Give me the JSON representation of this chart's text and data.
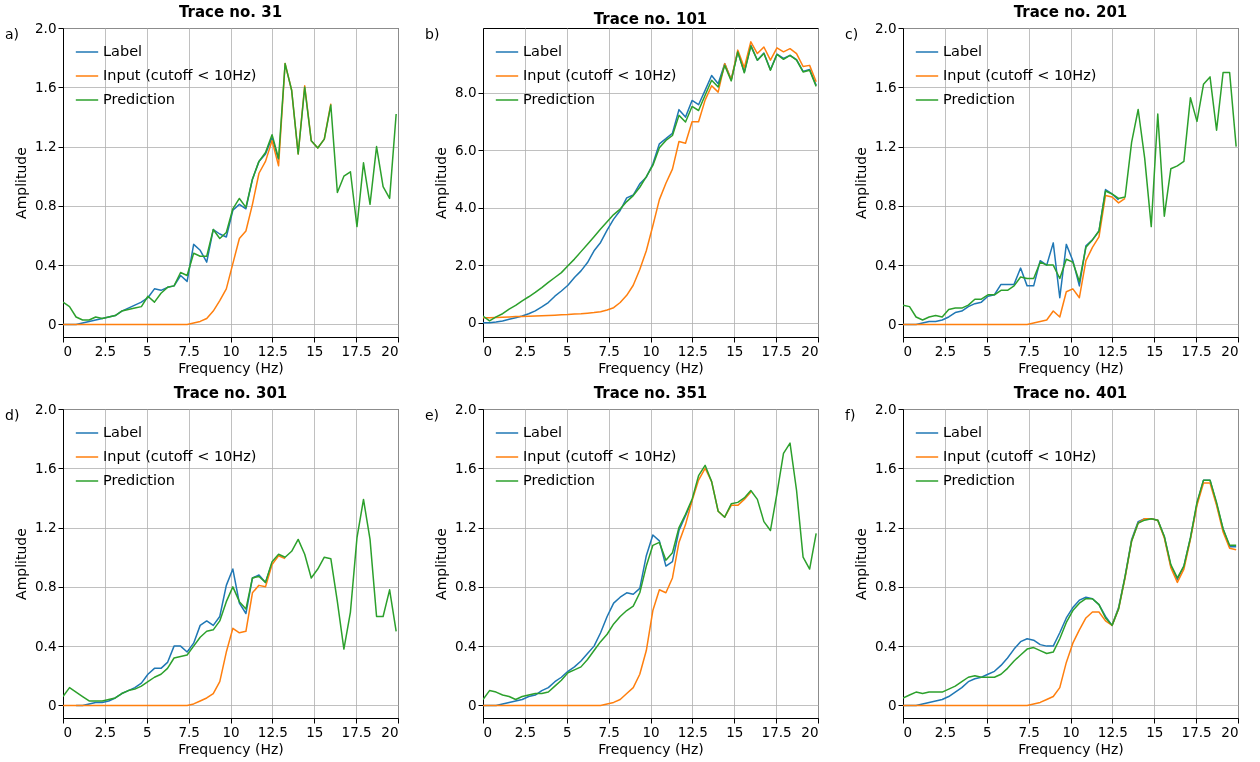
{
  "chart_data": [
    {
      "type": "line",
      "title": "Trace no. 31",
      "xlabel": "Frequency (Hz)",
      "ylabel": "Amplitude",
      "annotations": [
        "a)"
      ],
      "legend": "top left",
      "grid": true,
      "xlim": [
        0,
        20
      ],
      "xticks": [
        0,
        2.5,
        5,
        7.5,
        10,
        12.5,
        15,
        17.5,
        20
      ],
      "ylim": [
        -0.085,
        2.0
      ],
      "yticks": [
        0,
        0.4,
        0.8,
        1.2,
        1.6,
        {
          "value": 2.0,
          "label": "2.0"
        }
      ],
      "x": [
        0,
        0.39,
        0.78,
        1.17,
        1.56,
        1.95,
        2.34,
        2.73,
        3.12,
        3.51,
        3.9,
        4.29,
        4.68,
        5.07,
        5.46,
        5.85,
        6.24,
        6.63,
        7.02,
        7.41,
        7.8,
        8.19,
        8.58,
        8.97,
        9.36,
        9.75,
        10.14,
        10.53,
        10.92,
        11.31,
        11.7,
        12.09,
        12.48,
        12.87,
        13.26,
        13.65,
        14.04,
        14.43,
        14.82,
        15.21,
        15.6,
        15.99,
        16.38,
        16.77,
        17.16,
        17.55,
        17.94,
        18.33,
        18.72,
        19.11,
        19.5,
        19.89
      ],
      "series": [
        {
          "name": "Label",
          "color": "#1f77b4",
          "values": [
            0,
            0,
            0,
            0.01,
            0.02,
            0.03,
            0.04,
            0.05,
            0.06,
            0.09,
            0.11,
            0.13,
            0.15,
            0.18,
            0.24,
            0.23,
            0.25,
            0.26,
            0.33,
            0.29,
            0.54,
            0.5,
            0.42,
            0.64,
            0.61,
            0.59,
            0.77,
            0.81,
            0.78,
            0.98,
            1.1,
            1.15,
            1.26,
            1.11,
            null,
            null,
            null,
            null,
            null,
            null,
            null,
            null,
            null,
            null,
            null,
            null,
            null,
            null,
            null,
            null,
            null,
            null
          ]
        },
        {
          "name": "Input (cutoff < 10Hz)",
          "color": "#ff7f0e",
          "values": [
            0,
            0,
            0,
            0,
            0,
            0,
            0,
            0,
            0,
            0,
            0,
            0,
            0,
            0,
            0,
            0,
            0,
            0,
            0,
            0,
            0.01,
            0.02,
            0.04,
            0.09,
            0.16,
            0.24,
            0.41,
            0.58,
            0.63,
            0.81,
            1.02,
            1.1,
            1.24,
            1.07,
            1.76,
            1.58,
            1.15,
            1.61,
            1.24,
            1.19,
            1.25,
            1.49,
            null,
            null,
            null,
            null,
            null,
            null,
            null,
            null,
            null,
            null
          ]
        },
        {
          "name": "Prediction",
          "color": "#2ca02c",
          "values": [
            0.15,
            0.12,
            0.05,
            0.03,
            0.03,
            0.05,
            0.04,
            0.05,
            0.06,
            0.09,
            0.1,
            0.11,
            0.12,
            0.19,
            0.15,
            0.21,
            0.25,
            0.26,
            0.35,
            0.33,
            0.48,
            0.46,
            0.46,
            0.64,
            0.58,
            0.62,
            0.78,
            0.85,
            0.79,
            0.98,
            1.1,
            1.16,
            1.28,
            1.12,
            1.76,
            1.58,
            1.15,
            1.6,
            1.24,
            1.19,
            1.25,
            1.48,
            0.89,
            1.0,
            1.03,
            0.66,
            1.09,
            0.81,
            1.2,
            0.93,
            0.85,
            1.42
          ]
        }
      ]
    },
    {
      "type": "line",
      "title": "Trace no. 101",
      "xlabel": "Frequency (Hz)",
      "ylabel": "Amplitude",
      "annotations": [
        "b)"
      ],
      "legend": "top left",
      "grid": true,
      "xlim": [
        0,
        20
      ],
      "xticks": [
        0,
        2.5,
        5,
        7.5,
        10,
        12.5,
        15,
        17.5,
        20
      ],
      "ylim": [
        -0.5,
        10.25
      ],
      "yticks": [
        0,
        {
          "value": 2,
          "label": "2.0"
        },
        {
          "value": 4,
          "label": "4.0"
        },
        {
          "value": 6,
          "label": "6.0"
        },
        {
          "value": 8,
          "label": "8.0"
        }
      ],
      "x": [
        0,
        0.39,
        0.78,
        1.17,
        1.56,
        1.95,
        2.34,
        2.73,
        3.12,
        3.51,
        3.9,
        4.29,
        4.68,
        5.07,
        5.46,
        5.85,
        6.24,
        6.63,
        7.02,
        7.41,
        7.8,
        8.19,
        8.58,
        8.97,
        9.36,
        9.75,
        10.14,
        10.53,
        10.92,
        11.31,
        11.7,
        12.09,
        12.48,
        12.87,
        13.26,
        13.65,
        14.04,
        14.43,
        14.82,
        15.21,
        15.6,
        15.99,
        16.38,
        16.77,
        17.16,
        17.55,
        17.94,
        18.33,
        18.72,
        19.11,
        19.5,
        19.89
      ],
      "series": [
        {
          "name": "Label",
          "color": "#1f77b4",
          "values": [
            0,
            0,
            0.02,
            0.06,
            0.12,
            0.17,
            0.23,
            0.31,
            0.41,
            0.55,
            0.7,
            0.92,
            1.1,
            1.3,
            1.57,
            1.8,
            2.09,
            2.5,
            2.79,
            3.22,
            3.6,
            3.9,
            4.34,
            4.44,
            4.83,
            5.06,
            5.52,
            6.22,
            6.4,
            6.59,
            7.41,
            7.15,
            7.73,
            7.58,
            8.08,
            8.6,
            8.31,
            9.01,
            8.45,
            9.42,
            8.72,
            9.65,
            9.13,
            9.38,
            8.8,
            9.34,
            9.19,
            9.3,
            9.15,
            8.74,
            8.81,
            8.26
          ]
        },
        {
          "name": "Input (cutoff < 10Hz)",
          "color": "#ff7f0e",
          "values": [
            0.17,
            0.17,
            0.18,
            0.19,
            0.2,
            0.21,
            0.21,
            0.22,
            0.23,
            0.24,
            0.25,
            0.26,
            0.27,
            0.28,
            0.3,
            0.31,
            0.33,
            0.35,
            0.38,
            0.44,
            0.52,
            0.7,
            0.95,
            1.3,
            1.85,
            2.5,
            3.37,
            4.28,
            4.85,
            5.34,
            6.3,
            6.24,
            6.99,
            6.99,
            7.74,
            8.24,
            8.02,
            9.01,
            8.45,
            9.48,
            8.87,
            9.77,
            9.36,
            9.59,
            9.13,
            9.56,
            9.42,
            9.53,
            9.36,
            8.91,
            8.95,
            8.38
          ]
        },
        {
          "name": "Prediction",
          "color": "#2ca02c",
          "values": [
            0.23,
            0.06,
            0.2,
            0.31,
            0.47,
            0.6,
            0.76,
            0.9,
            1.05,
            1.22,
            1.4,
            1.57,
            1.74,
            1.98,
            2.21,
            2.47,
            2.73,
            2.99,
            3.26,
            3.51,
            3.76,
            3.95,
            4.21,
            4.42,
            4.71,
            5.08,
            5.47,
            6.08,
            6.34,
            6.51,
            7.21,
            6.98,
            7.52,
            7.38,
            7.91,
            8.43,
            8.2,
            8.95,
            8.41,
            9.42,
            8.69,
            9.62,
            9.13,
            9.36,
            8.78,
            9.33,
            9.16,
            9.3,
            9.13,
            8.72,
            8.78,
            8.22
          ]
        }
      ]
    },
    {
      "type": "line",
      "title": "Trace no. 201",
      "xlabel": "Frequency (Hz)",
      "ylabel": "Amplitude",
      "annotations": [
        "c)"
      ],
      "legend": "top left",
      "grid": true,
      "xlim": [
        0,
        20
      ],
      "xticks": [
        0,
        2.5,
        5,
        7.5,
        10,
        12.5,
        15,
        17.5,
        20
      ],
      "ylim": [
        -0.085,
        2.0
      ],
      "yticks": [
        0,
        0.4,
        0.8,
        1.2,
        1.6,
        {
          "value": 2.0,
          "label": "2.0"
        }
      ],
      "x": [
        0,
        0.39,
        0.78,
        1.17,
        1.56,
        1.95,
        2.34,
        2.73,
        3.12,
        3.51,
        3.9,
        4.29,
        4.68,
        5.07,
        5.46,
        5.85,
        6.24,
        6.63,
        7.02,
        7.41,
        7.8,
        8.19,
        8.58,
        8.97,
        9.36,
        9.75,
        10.14,
        10.53,
        10.92,
        11.31,
        11.7,
        12.09,
        12.48,
        12.87,
        13.26,
        13.65,
        14.04,
        14.43,
        14.82,
        15.21,
        15.6,
        15.99,
        16.38,
        16.77,
        17.16,
        17.55,
        17.94,
        18.33,
        18.72,
        19.11,
        19.5,
        19.89
      ],
      "series": [
        {
          "name": "Label",
          "color": "#1f77b4",
          "values": [
            0,
            0,
            0,
            0.01,
            0.02,
            0.02,
            0.03,
            0.05,
            0.08,
            0.09,
            0.12,
            0.14,
            0.15,
            0.19,
            0.2,
            0.27,
            0.27,
            0.27,
            0.38,
            0.26,
            0.26,
            0.43,
            0.4,
            0.55,
            0.18,
            0.54,
            0.43,
            0.26,
            0.53,
            0.57,
            0.63,
            0.91,
            0.88,
            0.84,
            null,
            null,
            null,
            null,
            null,
            null,
            null,
            null,
            null,
            null,
            null,
            null,
            null,
            null,
            null,
            null,
            null,
            null
          ]
        },
        {
          "name": "Input (cutoff < 10Hz)",
          "color": "#ff7f0e",
          "values": [
            0,
            0,
            0,
            0,
            0,
            0,
            0,
            0,
            0,
            0,
            0,
            0,
            0,
            0,
            0,
            0,
            0,
            0,
            0,
            0,
            0.01,
            0.02,
            0.03,
            0.09,
            0.05,
            0.22,
            0.24,
            0.18,
            0.43,
            0.52,
            0.59,
            0.87,
            0.86,
            0.82,
            0.85,
            null,
            null,
            null,
            null,
            null,
            null,
            null,
            null,
            null,
            null,
            null,
            null,
            null,
            null,
            null,
            null,
            null
          ]
        },
        {
          "name": "Prediction",
          "color": "#2ca02c",
          "values": [
            0.13,
            0.12,
            0.05,
            0.03,
            0.05,
            0.06,
            0.05,
            0.1,
            0.11,
            0.11,
            0.13,
            0.17,
            0.17,
            0.2,
            0.2,
            0.23,
            0.23,
            0.26,
            0.32,
            0.31,
            0.31,
            0.42,
            0.4,
            0.4,
            0.31,
            0.44,
            0.42,
            0.29,
            0.52,
            0.57,
            0.63,
            0.9,
            0.88,
            0.85,
            0.86,
            1.23,
            1.45,
            1.12,
            0.66,
            1.42,
            0.73,
            1.05,
            1.07,
            1.1,
            1.53,
            1.37,
            1.62,
            1.67,
            1.31,
            1.7,
            1.7,
            1.2
          ]
        }
      ]
    },
    {
      "type": "line",
      "title": "Trace no. 301",
      "xlabel": "Frequency (Hz)",
      "ylabel": "Amplitude",
      "annotations": [
        "d)"
      ],
      "legend": "top left",
      "grid": true,
      "xlim": [
        0,
        20
      ],
      "xticks": [
        0,
        2.5,
        5,
        7.5,
        10,
        12.5,
        15,
        17.5,
        20
      ],
      "ylim": [
        -0.085,
        2.0
      ],
      "yticks": [
        0,
        0.4,
        0.8,
        1.2,
        1.6,
        {
          "value": 2.0,
          "label": "2.0"
        }
      ],
      "x": [
        0,
        0.39,
        0.78,
        1.17,
        1.56,
        1.95,
        2.34,
        2.73,
        3.12,
        3.51,
        3.9,
        4.29,
        4.68,
        5.07,
        5.46,
        5.85,
        6.24,
        6.63,
        7.02,
        7.41,
        7.8,
        8.19,
        8.58,
        8.97,
        9.36,
        9.75,
        10.14,
        10.53,
        10.92,
        11.31,
        11.7,
        12.09,
        12.48,
        12.87,
        13.26,
        13.65,
        14.04,
        14.43,
        14.82,
        15.21,
        15.6,
        15.99,
        16.38,
        16.77,
        17.16,
        17.55,
        17.94,
        18.33,
        18.72,
        19.11,
        19.5,
        19.89
      ],
      "series": [
        {
          "name": "Label",
          "color": "#1f77b4",
          "values": [
            null,
            null,
            0,
            0,
            0.01,
            0.02,
            0.02,
            0.03,
            0.05,
            0.08,
            0.1,
            0.12,
            0.15,
            0.21,
            0.25,
            0.25,
            0.29,
            0.4,
            0.4,
            0.36,
            0.42,
            0.54,
            0.57,
            0.54,
            0.6,
            0.81,
            0.92,
            0.69,
            0.62,
            0.86,
            0.88,
            0.83,
            0.96,
            null,
            null,
            null,
            null,
            null,
            null,
            null,
            null,
            null,
            null,
            null,
            null,
            null,
            null,
            null,
            null,
            null,
            null,
            null
          ]
        },
        {
          "name": "Input (cutoff < 10Hz)",
          "color": "#ff7f0e",
          "values": [
            0,
            0,
            0,
            0,
            0,
            0,
            0,
            0,
            0,
            0,
            0,
            0,
            0,
            0,
            0,
            0,
            0,
            0,
            0,
            0,
            0.01,
            0.03,
            0.05,
            0.08,
            0.16,
            0.36,
            0.52,
            0.49,
            0.5,
            0.76,
            0.81,
            0.8,
            0.95,
            1.01,
            0.99,
            null,
            null,
            null,
            null,
            null,
            null,
            null,
            null,
            null,
            null,
            null,
            null,
            null,
            null,
            null,
            null,
            null
          ]
        },
        {
          "name": "Prediction",
          "color": "#2ca02c",
          "values": [
            0.06,
            0.12,
            0.09,
            0.06,
            0.03,
            0.03,
            0.03,
            0.04,
            0.05,
            0.08,
            0.1,
            0.11,
            0.13,
            0.16,
            0.19,
            0.21,
            0.25,
            0.32,
            0.33,
            0.34,
            0.4,
            0.46,
            0.5,
            0.51,
            0.57,
            0.7,
            0.8,
            0.7,
            0.65,
            0.86,
            0.87,
            0.83,
            0.97,
            1.02,
            1.0,
            1.04,
            1.12,
            1.02,
            0.86,
            0.92,
            1.0,
            0.99,
            0.7,
            0.38,
            0.63,
            1.13,
            1.39,
            1.12,
            0.6,
            0.6,
            0.78,
            0.5
          ]
        }
      ]
    },
    {
      "type": "line",
      "title": "Trace no. 351",
      "xlabel": "Frequency (Hz)",
      "ylabel": "Amplitude",
      "annotations": [
        "e)"
      ],
      "legend": "top left",
      "grid": true,
      "xlim": [
        0,
        20
      ],
      "xticks": [
        0,
        2.5,
        5,
        7.5,
        10,
        12.5,
        15,
        17.5,
        20
      ],
      "ylim": [
        -0.085,
        2.0
      ],
      "yticks": [
        0,
        0.4,
        0.8,
        1.2,
        1.6,
        {
          "value": 2.0,
          "label": "2.0"
        }
      ],
      "x": [
        0,
        0.39,
        0.78,
        1.17,
        1.56,
        1.95,
        2.34,
        2.73,
        3.12,
        3.51,
        3.9,
        4.29,
        4.68,
        5.07,
        5.46,
        5.85,
        6.24,
        6.63,
        7.02,
        7.41,
        7.8,
        8.19,
        8.58,
        8.97,
        9.36,
        9.75,
        10.14,
        10.53,
        10.92,
        11.31,
        11.7,
        12.09,
        12.48,
        12.87,
        13.26,
        13.65,
        14.04,
        14.43,
        14.82,
        15.21,
        15.6,
        15.99,
        16.38,
        16.77,
        17.16,
        17.55,
        17.94,
        18.33,
        18.72,
        19.11,
        19.5,
        19.89
      ],
      "series": [
        {
          "name": "Label",
          "color": "#1f77b4",
          "values": [
            0,
            0,
            0,
            0.01,
            0.02,
            0.03,
            0.04,
            0.06,
            0.07,
            0.1,
            0.12,
            0.16,
            0.19,
            0.23,
            0.26,
            0.3,
            0.35,
            0.4,
            0.49,
            0.6,
            0.69,
            0.73,
            0.76,
            0.75,
            0.79,
            1.01,
            1.15,
            1.11,
            0.94,
            0.97,
            1.18,
            1.28,
            1.38,
            null,
            null,
            null,
            null,
            null,
            null,
            null,
            null,
            null,
            null,
            null,
            null,
            null,
            null,
            null,
            null,
            null,
            null,
            null
          ]
        },
        {
          "name": "Input (cutoff < 10Hz)",
          "color": "#ff7f0e",
          "values": [
            0,
            0,
            0,
            0,
            0,
            0,
            0,
            0,
            0,
            0,
            0,
            0,
            0,
            0,
            0,
            0,
            0,
            0,
            0,
            0.01,
            0.02,
            0.04,
            0.08,
            0.12,
            0.21,
            0.37,
            0.64,
            0.78,
            0.76,
            0.86,
            1.1,
            1.22,
            1.38,
            1.52,
            1.6,
            1.51,
            1.31,
            1.27,
            1.35,
            1.35,
            1.39,
            1.44,
            null,
            null,
            null,
            null,
            null,
            null,
            null,
            null,
            null,
            null
          ]
        },
        {
          "name": "Prediction",
          "color": "#2ca02c",
          "values": [
            0.04,
            0.1,
            0.09,
            0.07,
            0.06,
            0.04,
            0.06,
            0.07,
            0.08,
            0.08,
            0.09,
            0.13,
            0.17,
            0.22,
            0.24,
            0.26,
            0.31,
            0.37,
            0.43,
            0.48,
            0.55,
            0.6,
            0.64,
            0.67,
            0.76,
            0.94,
            1.08,
            1.1,
            0.98,
            1.03,
            1.2,
            1.29,
            1.39,
            1.55,
            1.62,
            1.51,
            1.31,
            1.27,
            1.36,
            1.37,
            1.4,
            1.45,
            1.39,
            1.24,
            1.18,
            1.43,
            1.7,
            1.77,
            1.45,
            1.0,
            0.92,
            1.16
          ]
        }
      ]
    },
    {
      "type": "line",
      "title": "Trace no. 401",
      "xlabel": "Frequency (Hz)",
      "ylabel": "Amplitude",
      "annotations": [
        "f)"
      ],
      "legend": "top left",
      "grid": true,
      "xlim": [
        0,
        20
      ],
      "xticks": [
        0,
        2.5,
        5,
        7.5,
        10,
        12.5,
        15,
        17.5,
        20
      ],
      "ylim": [
        -0.085,
        2.0
      ],
      "yticks": [
        0,
        0.4,
        0.8,
        1.2,
        1.6,
        {
          "value": 2.0,
          "label": "2.0"
        }
      ],
      "x": [
        0,
        0.39,
        0.78,
        1.17,
        1.56,
        1.95,
        2.34,
        2.73,
        3.12,
        3.51,
        3.9,
        4.29,
        4.68,
        5.07,
        5.46,
        5.85,
        6.24,
        6.63,
        7.02,
        7.41,
        7.8,
        8.19,
        8.58,
        8.97,
        9.36,
        9.75,
        10.14,
        10.53,
        10.92,
        11.31,
        11.7,
        12.09,
        12.48,
        12.87,
        13.26,
        13.65,
        14.04,
        14.43,
        14.82,
        15.21,
        15.6,
        15.99,
        16.38,
        16.77,
        17.16,
        17.55,
        17.94,
        18.33,
        18.72,
        19.11,
        19.5,
        19.89
      ],
      "series": [
        {
          "name": "Label",
          "color": "#1f77b4",
          "values": [
            0,
            0,
            0,
            0.01,
            0.02,
            0.03,
            0.04,
            0.06,
            0.09,
            0.12,
            0.16,
            0.18,
            0.19,
            0.21,
            0.23,
            0.27,
            0.32,
            0.38,
            0.43,
            0.45,
            0.44,
            0.41,
            0.4,
            0.4,
            0.49,
            0.59,
            0.66,
            0.71,
            0.73,
            0.72,
            0.68,
            0.6,
            0.54,
            0.66,
            0.87,
            1.12,
            1.24,
            1.26,
            1.26,
            1.25,
            1.14,
            0.94,
            0.85,
            0.94,
            1.13,
            1.36,
            1.52,
            1.52,
            1.36,
            1.19,
            1.07,
            1.07
          ]
        },
        {
          "name": "Input (cutoff < 10Hz)",
          "color": "#ff7f0e",
          "values": [
            0,
            0,
            0,
            0,
            0,
            0,
            0,
            0,
            0,
            0,
            0,
            0,
            0,
            0,
            0,
            0,
            0,
            0,
            0,
            0,
            0.01,
            0.02,
            0.04,
            0.06,
            0.12,
            0.29,
            0.42,
            0.51,
            0.59,
            0.63,
            0.63,
            0.57,
            0.54,
            0.65,
            0.86,
            1.11,
            1.23,
            1.26,
            1.26,
            1.25,
            1.13,
            0.93,
            0.83,
            0.92,
            1.12,
            1.35,
            1.5,
            1.5,
            1.35,
            1.17,
            1.06,
            1.05
          ]
        },
        {
          "name": "Prediction",
          "color": "#2ca02c",
          "values": [
            0.05,
            0.07,
            0.09,
            0.08,
            0.09,
            0.09,
            0.09,
            0.11,
            0.13,
            0.16,
            0.19,
            0.2,
            0.19,
            0.19,
            0.19,
            0.21,
            0.25,
            0.3,
            0.34,
            0.38,
            0.39,
            0.37,
            0.35,
            0.36,
            0.45,
            0.56,
            0.64,
            0.69,
            0.72,
            0.72,
            0.68,
            0.59,
            0.54,
            0.65,
            0.87,
            1.11,
            1.23,
            1.25,
            1.26,
            1.25,
            1.14,
            0.95,
            0.86,
            0.94,
            1.13,
            1.37,
            1.52,
            1.52,
            1.37,
            1.19,
            1.08,
            1.08
          ]
        }
      ]
    }
  ]
}
